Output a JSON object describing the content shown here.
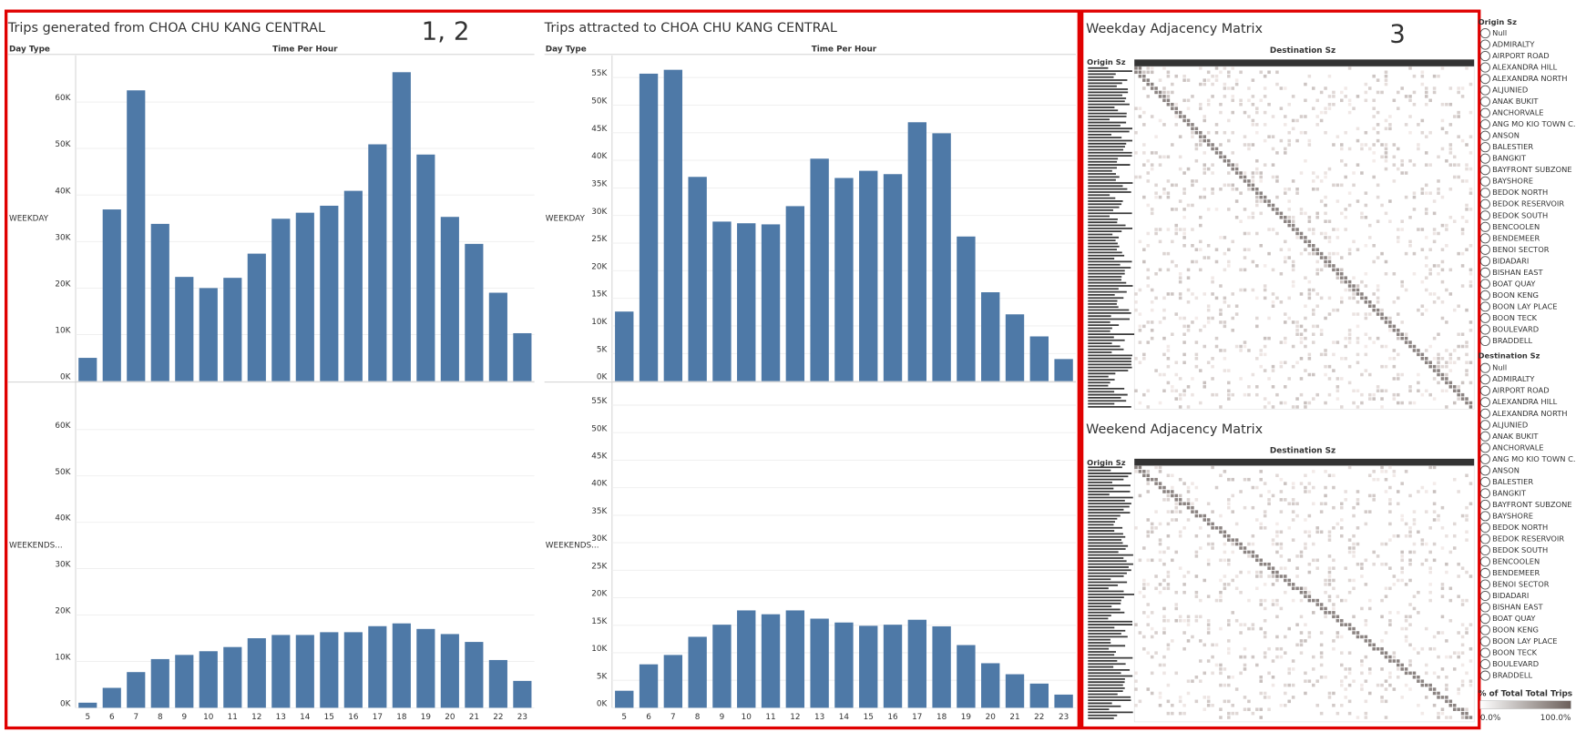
{
  "chart_data": [
    {
      "type": "bar",
      "title": "Trips generated from CHOA CHU KANG CENTRAL",
      "row_title": "Day Type",
      "x_title": "Time Per Hour",
      "categories": [
        5,
        6,
        7,
        8,
        9,
        10,
        11,
        12,
        13,
        14,
        15,
        16,
        17,
        18,
        19,
        20,
        21,
        22,
        23
      ],
      "ylim": [
        0,
        70000
      ],
      "yticks": [
        {
          "value": 0,
          "label": "0K"
        },
        {
          "value": 10000,
          "label": "10K"
        },
        {
          "value": 20000,
          "label": "20K"
        },
        {
          "value": 30000,
          "label": "30K"
        },
        {
          "value": 40000,
          "label": "40K"
        },
        {
          "value": 50000,
          "label": "50K"
        },
        {
          "value": 60000,
          "label": "60K"
        }
      ],
      "grid": true,
      "series": [
        {
          "name": "WEEKDAY",
          "color": "#4e79a7",
          "values": [
            5000,
            36900,
            62500,
            33800,
            22400,
            20000,
            22200,
            27400,
            34900,
            36200,
            37700,
            40900,
            50900,
            66400,
            48700,
            35300,
            29500,
            19000,
            10300
          ]
        },
        {
          "name": "WEEKENDS...",
          "color": "#4e79a7",
          "values": [
            1100,
            4300,
            7700,
            10500,
            11400,
            12200,
            13100,
            15000,
            15700,
            15700,
            16300,
            16300,
            17600,
            18200,
            17000,
            15900,
            14200,
            10300,
            5800
          ]
        }
      ]
    },
    {
      "type": "bar",
      "title": "Trips attracted to CHOA CHU KANG CENTRAL",
      "row_title": "Day Type",
      "x_title": "Time Per Hour",
      "categories": [
        5,
        6,
        7,
        8,
        9,
        10,
        11,
        12,
        13,
        14,
        15,
        16,
        17,
        18,
        19,
        20,
        21,
        22,
        23
      ],
      "ylim": [
        0,
        59000
      ],
      "yticks": [
        {
          "value": 0,
          "label": "0K"
        },
        {
          "value": 5000,
          "label": "5K"
        },
        {
          "value": 10000,
          "label": "10K"
        },
        {
          "value": 15000,
          "label": "15K"
        },
        {
          "value": 20000,
          "label": "20K"
        },
        {
          "value": 25000,
          "label": "25K"
        },
        {
          "value": 30000,
          "label": "30K"
        },
        {
          "value": 35000,
          "label": "35K"
        },
        {
          "value": 40000,
          "label": "40K"
        },
        {
          "value": 45000,
          "label": "45K"
        },
        {
          "value": 50000,
          "label": "50K"
        },
        {
          "value": 55000,
          "label": "55K"
        }
      ],
      "grid": true,
      "series": [
        {
          "name": "WEEKDAY",
          "color": "#4e79a7",
          "values": [
            12600,
            55700,
            56400,
            37000,
            28900,
            28600,
            28400,
            31700,
            40300,
            36800,
            38100,
            37500,
            46900,
            44900,
            26200,
            16100,
            12100,
            8100,
            4000
          ]
        },
        {
          "name": "WEEKENDS...",
          "color": "#4e79a7",
          "values": [
            3100,
            7900,
            9600,
            12900,
            15100,
            17700,
            17000,
            17700,
            16200,
            15500,
            14900,
            15100,
            16000,
            14800,
            11400,
            8100,
            6100,
            4400,
            2400
          ]
        }
      ]
    }
  ],
  "annotations": [
    "1, 2",
    "3"
  ],
  "matrices": [
    {
      "title": "Weekday Adjacency Matrix",
      "column_header": "Destination Sz",
      "row_header": "Origin Sz"
    },
    {
      "title": "Weekend Adjacency Matrix",
      "column_header": "Destination Sz",
      "row_header": "Origin Sz"
    }
  ],
  "filters": [
    {
      "title": "Origin Sz",
      "items": [
        "Null",
        "ADMIRALTY",
        "AIRPORT ROAD",
        "ALEXANDRA HILL",
        "ALEXANDRA NORTH",
        "ALJUNIED",
        "ANAK BUKIT",
        "ANCHORVALE",
        "ANG MO KIO TOWN C...",
        "ANSON",
        "BALESTIER",
        "BANGKIT",
        "BAYFRONT SUBZONE",
        "BAYSHORE",
        "BEDOK NORTH",
        "BEDOK RESERVOIR",
        "BEDOK SOUTH",
        "BENCOOLEN",
        "BENDEMEER",
        "BENOI SECTOR",
        "BIDADARI",
        "BISHAN EAST",
        "BOAT QUAY",
        "BOON KENG",
        "BOON LAY PLACE",
        "BOON TECK",
        "BOULEVARD",
        "BRADDELL"
      ]
    },
    {
      "title": "Destination Sz",
      "items": [
        "Null",
        "ADMIRALTY",
        "AIRPORT ROAD",
        "ALEXANDRA HILL",
        "ALEXANDRA NORTH",
        "ALJUNIED",
        "ANAK BUKIT",
        "ANCHORVALE",
        "ANG MO KIO TOWN C...",
        "ANSON",
        "BALESTIER",
        "BANGKIT",
        "BAYFRONT SUBZONE",
        "BAYSHORE",
        "BEDOK NORTH",
        "BEDOK RESERVOIR",
        "BEDOK SOUTH",
        "BENCOOLEN",
        "BENDEMEER",
        "BENOI SECTOR",
        "BIDADARI",
        "BISHAN EAST",
        "BOAT QUAY",
        "BOON KENG",
        "BOON LAY PLACE",
        "BOON TECK",
        "BOULEVARD",
        "BRADDELL"
      ]
    }
  ],
  "legend": {
    "title": "% of Total Total Trips",
    "min_label": "0.0%",
    "max_label": "100.0%"
  }
}
